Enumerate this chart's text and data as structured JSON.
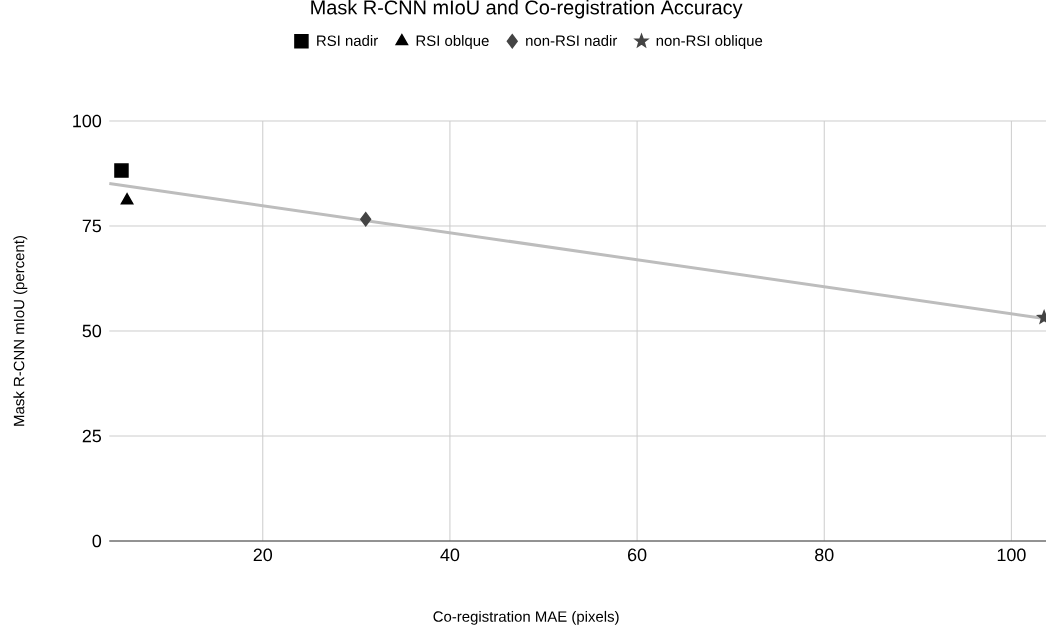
{
  "chart_data": {
    "type": "scatter",
    "title": "Mask R-CNN mIoU and Co-registration Accuracy",
    "xlabel": "Co-registration MAE (pixels)",
    "ylabel": "Mask R-CNN mIoU (percent)",
    "xlim": [
      3.6,
      103.7
    ],
    "xticks": [
      20,
      40,
      60,
      80,
      100
    ],
    "ylim": [
      0,
      100
    ],
    "yticks": [
      0,
      25,
      50,
      75,
      100
    ],
    "grid": true,
    "legend": "top",
    "series": [
      {
        "name": "RSI nadir",
        "color": "#000000",
        "marker": "square",
        "x": [
          4.9
        ],
        "values": [
          88.2
        ]
      },
      {
        "name": "RSI oblque",
        "color": "#000000",
        "marker": "triangle",
        "x": [
          5.5
        ],
        "values": [
          81.1
        ]
      },
      {
        "name": "non-RSI nadir",
        "color": "#444444",
        "marker": "diamond",
        "x": [
          31.0
        ],
        "values": [
          76.6
        ]
      },
      {
        "name": "non-RSI oblique",
        "color": "#444444",
        "marker": "star",
        "x": [
          103.5
        ],
        "values": [
          53.2
        ]
      },
      {
        "type": "line",
        "color": "#bdbdbd",
        "line_style": "solid",
        "marker": "none",
        "x": [
          3.6,
          103.7
        ],
        "values": [
          85.1,
          52.9
        ]
      }
    ]
  }
}
